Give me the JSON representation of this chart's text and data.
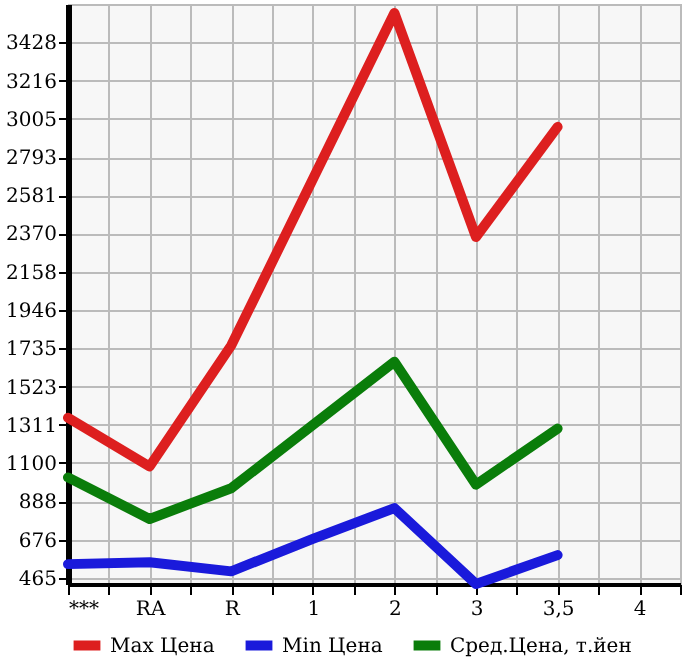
{
  "chart_data": {
    "type": "line",
    "categories": [
      "***",
      "RA",
      "R",
      "1",
      "2",
      "3",
      "3,5",
      "4"
    ],
    "series": [
      {
        "name": "Max Цена",
        "color": "#dd1f1f",
        "values": [
          1350,
          1080,
          1750,
          2670,
          3590,
          2350,
          2960,
          null
        ]
      },
      {
        "name": "Min Цена",
        "color": "#1a1adb",
        "values": [
          540,
          550,
          500,
          680,
          850,
          430,
          590,
          null
        ]
      },
      {
        "name": "Сред.Цена, т.йен",
        "color": "#0a7d0a",
        "values": [
          1020,
          790,
          960,
          1310,
          1660,
          980,
          1290,
          null
        ]
      }
    ],
    "ylim": [
      430,
      3640
    ],
    "yticks": [
      465,
      676,
      888,
      1100,
      1311,
      1523,
      1735,
      1946,
      2158,
      2370,
      2581,
      2793,
      3005,
      3216,
      3428
    ],
    "grid": true,
    "legend": "bottom",
    "line_style": "solid",
    "marker": "none"
  }
}
